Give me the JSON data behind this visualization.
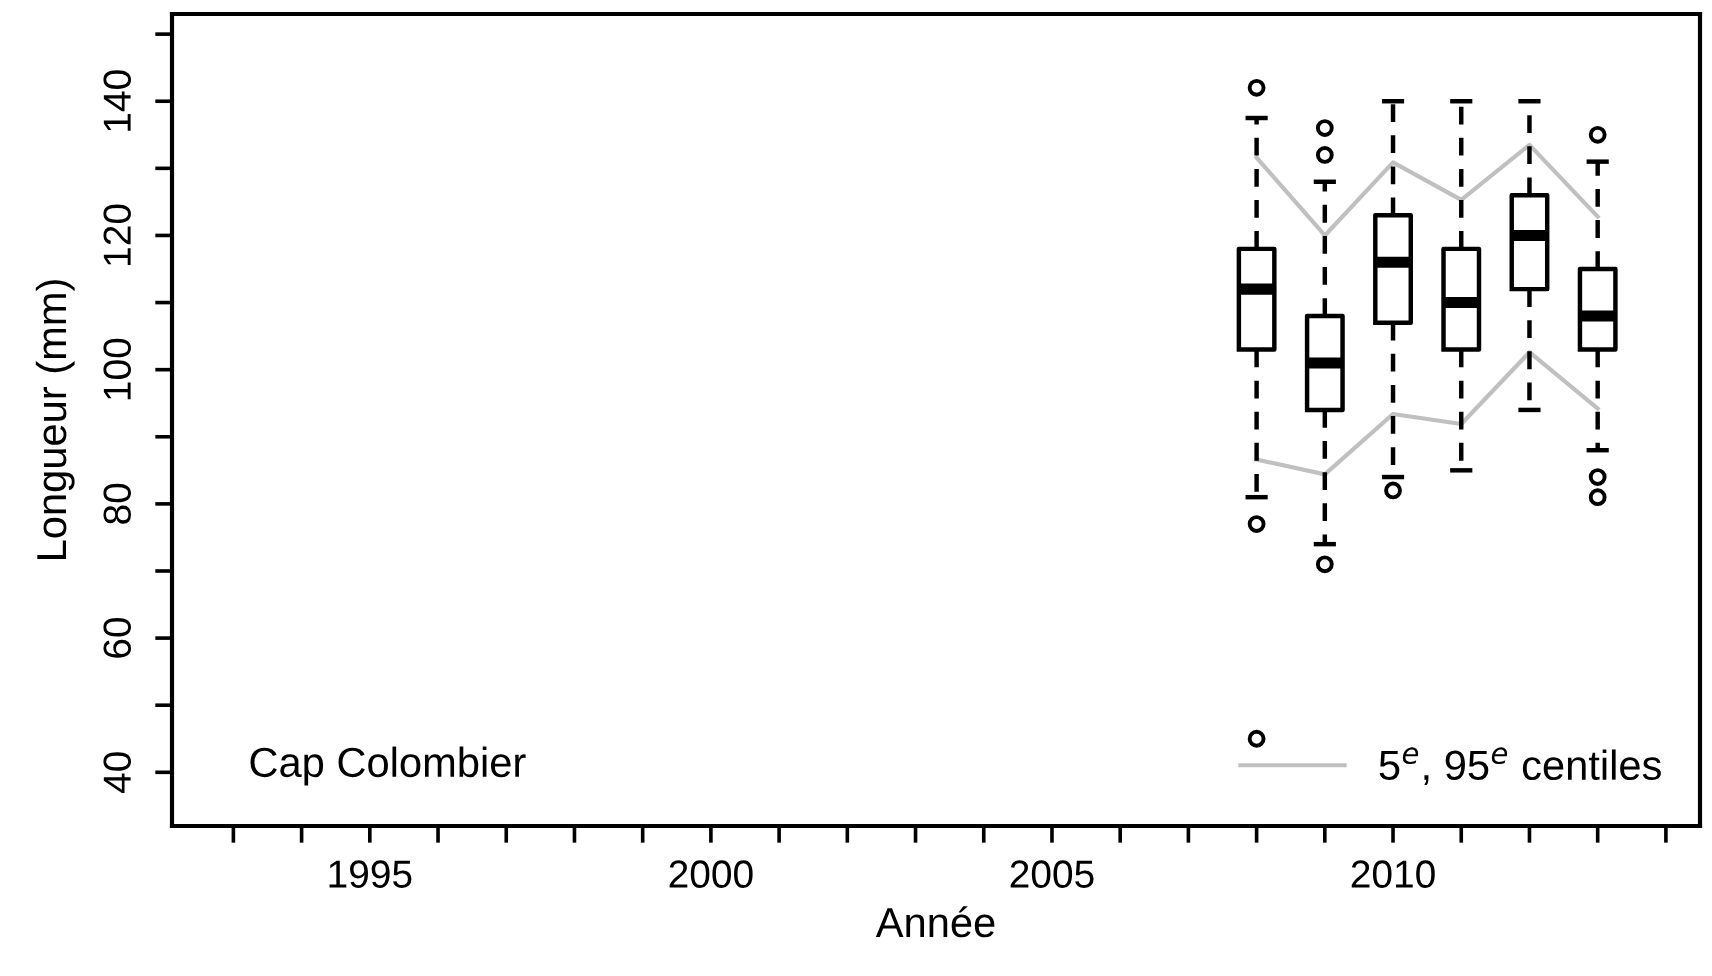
{
  "chart_data": {
    "type": "box",
    "xlabel": "Année",
    "ylabel": "Longueur (mm)",
    "annotations": [
      "Cap Colombier"
    ],
    "xlim": [
      1992.1,
      2014.5
    ],
    "ylim": [
      32,
      153
    ],
    "xticks": [
      {
        "value": 1993,
        "label": null
      },
      {
        "value": 1994,
        "label": null
      },
      1995,
      {
        "value": 1996,
        "label": null
      },
      {
        "value": 1997,
        "label": null
      },
      {
        "value": 1998,
        "label": null
      },
      {
        "value": 1999,
        "label": null
      },
      2000,
      {
        "value": 2001,
        "label": null
      },
      {
        "value": 2002,
        "label": null
      },
      {
        "value": 2003,
        "label": null
      },
      {
        "value": 2004,
        "label": null
      },
      2005,
      {
        "value": 2006,
        "label": null
      },
      {
        "value": 2007,
        "label": null
      },
      {
        "value": 2008,
        "label": null
      },
      {
        "value": 2009,
        "label": null
      },
      2010,
      {
        "value": 2011,
        "label": null
      },
      {
        "value": 2012,
        "label": null
      },
      {
        "value": 2013,
        "label": null
      },
      {
        "value": 2014,
        "label": null
      }
    ],
    "yticks": [
      40,
      {
        "value": 50,
        "label": null
      },
      60,
      {
        "value": 70,
        "label": null
      },
      80,
      {
        "value": 90,
        "label": null
      },
      100,
      {
        "value": 110,
        "label": null
      },
      120,
      {
        "value": 130,
        "label": null
      },
      140,
      {
        "value": 150,
        "label": null
      }
    ],
    "grid": false,
    "legend": "bottom right",
    "series": [
      {
        "color": "#000000",
        "x": [
          2008,
          2009,
          2010,
          2011,
          2012,
          2013
        ],
        "boxes": [
          {
            "low": 81,
            "q1": 103,
            "median": 112,
            "q3": 118,
            "high": 137.5,
            "outliers": [
              142,
              77,
              45
            ]
          },
          {
            "low": 74,
            "q1": 94,
            "median": 101,
            "q3": 108,
            "high": 128,
            "outliers": [
              136,
              132,
              71
            ]
          },
          {
            "low": 84,
            "q1": 107,
            "median": 116,
            "q3": 123,
            "high": 140,
            "outliers": [
              82
            ]
          },
          {
            "low": 85,
            "q1": 103,
            "median": 110,
            "q3": 118,
            "high": 140
          },
          {
            "low": 94,
            "q1": 112,
            "median": 120,
            "q3": 126,
            "high": 140
          },
          {
            "low": 88,
            "q1": 103,
            "median": 108,
            "q3": 115,
            "high": 131,
            "outliers": [
              135,
              84,
              81
            ]
          }
        ]
      },
      {
        "type": "line",
        "name": "5$^{e}$, 95$^{e}$ centiles",
        "color": "#c0c0c0",
        "x": [
          2008,
          2009,
          2010,
          2011,
          2012,
          2013
        ],
        "values": [
          86.6,
          84.4,
          93.4,
          91.9,
          102.6,
          94.2
        ]
      },
      {
        "type": "line",
        "color": "#c0c0c0",
        "x": [
          2008,
          2009,
          2010,
          2011,
          2012,
          2013
        ],
        "values": [
          131.6,
          120,
          130.9,
          125.3,
          133.5,
          122.8
        ]
      }
    ]
  }
}
